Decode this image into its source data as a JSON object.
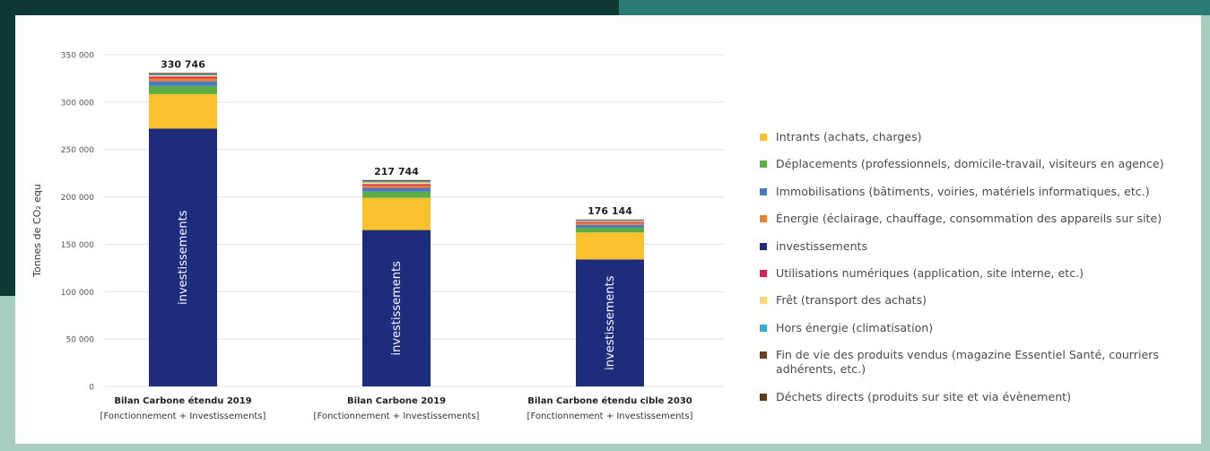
{
  "chart_data": {
    "type": "bar",
    "stacked": true,
    "ylabel": "Tonnes de CO₂ equ",
    "ylim": [
      0,
      350000
    ],
    "yticks": [
      0,
      50000,
      100000,
      150000,
      200000,
      250000,
      300000,
      350000
    ],
    "ytick_labels": [
      "0",
      "50 000",
      "100 000",
      "150 000",
      "200 000",
      "250 000",
      "300 000",
      "350 000"
    ],
    "categories": [
      {
        "line1": "Bilan Carbone étendu 2019",
        "line2": "[Fonctionnement + Investissements]"
      },
      {
        "line1": "Bilan Carbone 2019",
        "line2": "[Fonctionnement + Investissements]"
      },
      {
        "line1": "Bilan Carbone étendu cible 2030",
        "line2": "[Fonctionnement + Investissements]"
      }
    ],
    "totals": [
      330746,
      217744,
      176144
    ],
    "total_labels": [
      "330 746",
      "217 744",
      "176 144"
    ],
    "bar_label": "investissements",
    "series": [
      {
        "key": "investissements",
        "color": "#1d2d7c",
        "values": [
          272000,
          165000,
          134000
        ]
      },
      {
        "key": "intrants",
        "color": "#f8c12d",
        "values": [
          36500,
          34000,
          28500
        ]
      },
      {
        "key": "deplacements",
        "color": "#5aae45",
        "values": [
          8500,
          6500,
          5000
        ]
      },
      {
        "key": "immobilisations",
        "color": "#4d79c2",
        "values": [
          5000,
          4000,
          3000
        ]
      },
      {
        "key": "energie",
        "color": "#f0822f",
        "values": [
          3000,
          2300,
          1800
        ]
      },
      {
        "key": "numerique",
        "color": "#d6245a",
        "values": [
          1800,
          1500,
          1200
        ]
      },
      {
        "key": "fret",
        "color": "#fbd876",
        "values": [
          1500,
          2000,
          1000
        ]
      },
      {
        "key": "hors_energie",
        "color": "#39a6dc",
        "values": [
          1200,
          1200,
          800
        ]
      },
      {
        "key": "fin_de_vie",
        "color": "#6b3f1f",
        "values": [
          700,
          700,
          500
        ]
      },
      {
        "key": "dechets",
        "color": "#5a3a1a",
        "values": [
          546,
          544,
          344
        ]
      }
    ],
    "legend": [
      {
        "label": "Intrants (achats, charges)",
        "color": "#f8c12d"
      },
      {
        "label": "Déplacements (professionnels, domicile-travail, visiteurs en agence)",
        "color": "#5aae45"
      },
      {
        "label": "Immobilisations (bâtiments, voiries, matériels informatiques, etc.)",
        "color": "#4d79c2"
      },
      {
        "label": "Énergie (éclairage, chauffage, consommation des appareils sur site)",
        "color": "#f0822f"
      },
      {
        "label": "investissements",
        "color": "#1d2d7c"
      },
      {
        "label": "Utilisations numériques (application, site interne, etc.)",
        "color": "#d6245a"
      },
      {
        "label": "Frêt (transport des achats)",
        "color": "#fbd876"
      },
      {
        "label": "Hors énergie (climatisation)",
        "color": "#39a6dc"
      },
      {
        "label": "Fin de vie des produits vendus (magazine Essentiel Santé, courriers adhérents, etc.)",
        "color": "#6b3f1f"
      },
      {
        "label": "Déchets directs (produits sur site et via évènement)",
        "color": "#5a3a1a"
      }
    ],
    "legend_position": "right",
    "grid": true
  }
}
